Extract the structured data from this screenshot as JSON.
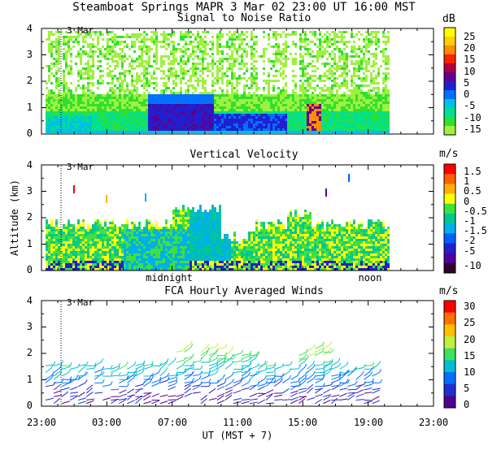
{
  "header": {
    "title": "Steamboat Springs  MAPR  3 Mar 02  23:00 UT  16:00  MST"
  },
  "chart_data": [
    {
      "type": "heatmap",
      "title": "Signal to Noise Ratio",
      "unit": "dB",
      "ylabel": "",
      "ylim": [
        0,
        4
      ],
      "yticks": [
        "0",
        "1",
        "2",
        "3",
        "4"
      ],
      "date_label": "3 Mar",
      "colorbar_labels": [
        "25",
        "20",
        "15",
        "10",
        "5",
        "0",
        "-5",
        "-10",
        "-15"
      ],
      "colorbar_colors": [
        "#ffff00",
        "#ffd000",
        "#ff8c00",
        "#ff2000",
        "#b00040",
        "#600090",
        "#2020d0",
        "#0070ff",
        "#00c0e8",
        "#00e090",
        "#30e030",
        "#a0f040"
      ]
    },
    {
      "type": "heatmap",
      "title": "Vertical Velocity",
      "unit": "m/s",
      "ylabel": "Altitude (km)",
      "ylim": [
        0,
        4
      ],
      "yticks": [
        "0",
        "1",
        "2",
        "3",
        "4"
      ],
      "date_label": "3 Mar",
      "time_markers": [
        "midnight",
        "noon"
      ],
      "colorbar_labels": [
        "1.5",
        "1",
        "0.5",
        "0",
        "-0.5",
        "-1",
        "-1.5",
        "-2",
        "-5",
        "-10"
      ],
      "colorbar_colors": [
        "#ff0000",
        "#ff6000",
        "#ffb000",
        "#ffff00",
        "#40e040",
        "#00c890",
        "#00b0e8",
        "#0060ff",
        "#2020d0",
        "#5000a0",
        "#300030"
      ]
    },
    {
      "type": "barbs",
      "title": "FCA Hourly Averaged Winds",
      "unit": "m/s",
      "ylabel": "",
      "ylim": [
        0,
        4
      ],
      "yticks": [
        "0",
        "1",
        "2",
        "3",
        "4"
      ],
      "date_label": "3 Mar",
      "colorbar_labels": [
        "30",
        "25",
        "20",
        "15",
        "10",
        "5",
        "0"
      ],
      "colorbar_colors": [
        "#ff0000",
        "#ff7000",
        "#ffc000",
        "#c0f040",
        "#40e060",
        "#00c0d0",
        "#0070ff",
        "#2030d0",
        "#500090"
      ],
      "xlabel": "UT  (MST + 7)",
      "xticks": [
        "23:00",
        "03:00",
        "07:00",
        "11:00",
        "15:00",
        "19:00",
        "23:00"
      ],
      "hours_range": [
        0,
        24
      ]
    }
  ]
}
